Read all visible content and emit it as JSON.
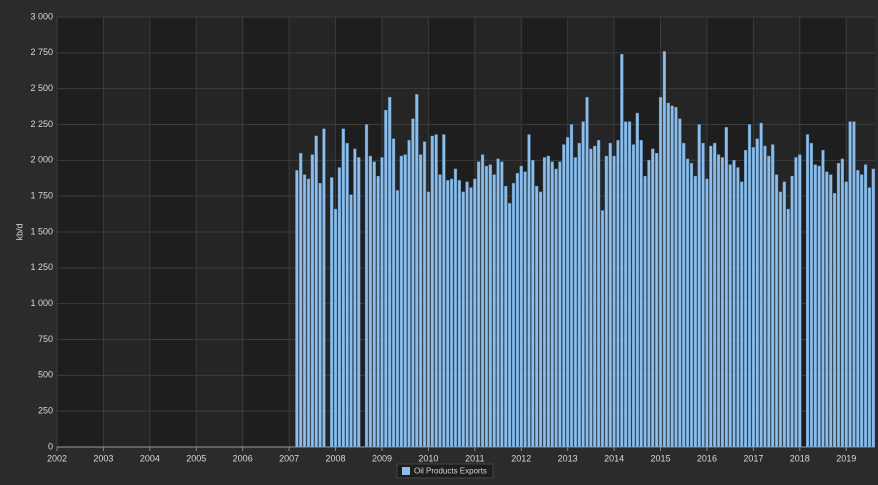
{
  "chart_data": {
    "type": "bar",
    "y_label": "kb/d",
    "legend": "bottom",
    "grid": true,
    "xlim": [
      2002,
      2019.62
    ],
    "ylim": [
      0,
      3000
    ],
    "xticks": [
      2002,
      2003,
      2004,
      2005,
      2006,
      2007,
      2008,
      2009,
      2010,
      2011,
      2012,
      2013,
      2014,
      2015,
      2016,
      2017,
      2018,
      2019
    ],
    "yticks": [
      0,
      250,
      500,
      750,
      {
        "value": 1000,
        "label": "1 000"
      },
      {
        "value": 1250,
        "label": "1 250"
      },
      {
        "value": 1500,
        "label": "1 500"
      },
      {
        "value": 1750,
        "label": "1 750"
      },
      {
        "value": 2000,
        "label": "2 000"
      },
      {
        "value": 2250,
        "label": "2 250"
      },
      {
        "value": 2500,
        "label": "2 500"
      },
      {
        "value": 2750,
        "label": "2 750"
      },
      {
        "value": 3000,
        "label": "3 000"
      }
    ],
    "x": [
      2007.167,
      2007.25,
      2007.333,
      2007.417,
      2007.5,
      2007.583,
      2007.667,
      2007.75,
      2007.833,
      2007.917,
      2008.0,
      2008.083,
      2008.167,
      2008.25,
      2008.333,
      2008.417,
      2008.5,
      2008.583,
      2008.667,
      2008.75,
      2008.833,
      2008.917,
      2009.0,
      2009.083,
      2009.167,
      2009.25,
      2009.333,
      2009.417,
      2009.5,
      2009.583,
      2009.667,
      2009.75,
      2009.833,
      2009.917,
      2010.0,
      2010.083,
      2010.167,
      2010.25,
      2010.333,
      2010.417,
      2010.5,
      2010.583,
      2010.667,
      2010.75,
      2010.833,
      2010.917,
      2011.0,
      2011.083,
      2011.167,
      2011.25,
      2011.333,
      2011.417,
      2011.5,
      2011.583,
      2011.667,
      2011.75,
      2011.833,
      2011.917,
      2012.0,
      2012.083,
      2012.167,
      2012.25,
      2012.333,
      2012.417,
      2012.5,
      2012.583,
      2012.667,
      2012.75,
      2012.833,
      2012.917,
      2013.0,
      2013.083,
      2013.167,
      2013.25,
      2013.333,
      2013.417,
      2013.5,
      2013.583,
      2013.667,
      2013.75,
      2013.833,
      2013.917,
      2014.0,
      2014.083,
      2014.167,
      2014.25,
      2014.333,
      2014.417,
      2014.5,
      2014.583,
      2014.667,
      2014.75,
      2014.833,
      2014.917,
      2015.0,
      2015.083,
      2015.167,
      2015.25,
      2015.333,
      2015.417,
      2015.5,
      2015.583,
      2015.667,
      2015.75,
      2015.833,
      2015.917,
      2016.0,
      2016.083,
      2016.167,
      2016.25,
      2016.333,
      2016.417,
      2016.5,
      2016.583,
      2016.667,
      2016.75,
      2016.833,
      2016.917,
      2017.0,
      2017.083,
      2017.167,
      2017.25,
      2017.333,
      2017.417,
      2017.5,
      2017.583,
      2017.667,
      2017.75,
      2017.833,
      2017.917,
      2018.0,
      2018.083,
      2018.167,
      2018.25,
      2018.333,
      2018.417,
      2018.5,
      2018.583,
      2018.667,
      2018.75,
      2018.833,
      2018.917,
      2019.0,
      2019.083,
      2019.167,
      2019.25,
      2019.333,
      2019.417,
      2019.5,
      2019.583
    ],
    "series": [
      {
        "name": "Oil Products Exports",
        "color": "#8dbde8",
        "values": [
          1930,
          2050,
          1900,
          1870,
          2040,
          2170,
          1840,
          2220,
          null,
          1880,
          1660,
          1950,
          2220,
          2120,
          1760,
          2080,
          2020,
          null,
          2250,
          2030,
          1990,
          1890,
          2020,
          2350,
          2440,
          2150,
          1790,
          2030,
          2040,
          2140,
          2290,
          2460,
          2040,
          2130,
          1780,
          2170,
          2180,
          1900,
          2180,
          1860,
          1870,
          1940,
          1860,
          1780,
          1850,
          1810,
          1870,
          1990,
          2040,
          1960,
          1970,
          1900,
          2010,
          1990,
          1820,
          1700,
          1840,
          1910,
          1960,
          1920,
          2180,
          2000,
          1820,
          1780,
          2020,
          2030,
          1990,
          1940,
          1990,
          2110,
          2160,
          2250,
          2020,
          2120,
          2270,
          2440,
          2080,
          2100,
          2140,
          1650,
          2030,
          2120,
          2030,
          2140,
          2740,
          2270,
          2270,
          2110,
          2330,
          2140,
          1890,
          2000,
          2080,
          2050,
          2440,
          2760,
          2400,
          2380,
          2370,
          2290,
          2120,
          2010,
          1980,
          1890,
          2250,
          2120,
          1870,
          2100,
          2120,
          2040,
          2020,
          2230,
          1970,
          2000,
          1950,
          1850,
          2070,
          2250,
          2090,
          2150,
          2260,
          2100,
          2030,
          2110,
          1900,
          1780,
          1850,
          1660,
          1890,
          2020,
          2040,
          null,
          2180,
          2120,
          1970,
          1960,
          2070,
          1920,
          1900,
          1770,
          1980,
          2010,
          1850,
          2270,
          2270,
          1930,
          1900,
          1970,
          1810,
          1940
        ]
      }
    ]
  }
}
